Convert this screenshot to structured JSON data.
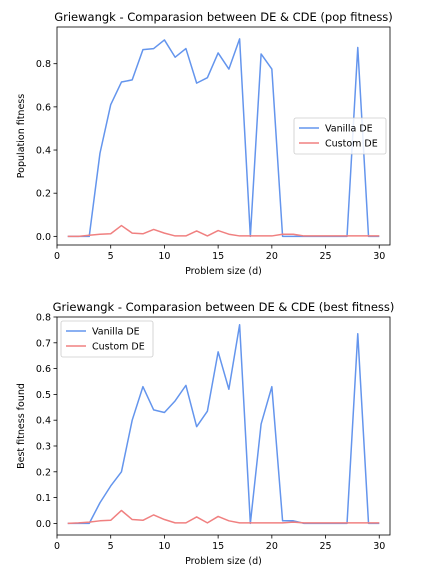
{
  "chart_data": [
    {
      "type": "line",
      "title": "Griewangk - Comparasion between DE & CDE (pop fitness)",
      "xlabel": "Problem size (d)",
      "ylabel": "Population fitness",
      "xlim": [
        0,
        31
      ],
      "ylim": [
        -0.04,
        0.97
      ],
      "xticks": [
        "0",
        "5",
        "10",
        "15",
        "20",
        "25",
        "30"
      ],
      "yticks": [
        "0.0",
        "0.2",
        "0.4",
        "0.6",
        "0.8"
      ],
      "legend_position": "center-right",
      "grid": false,
      "x": [
        1,
        2,
        3,
        4,
        5,
        6,
        7,
        8,
        9,
        10,
        11,
        12,
        13,
        14,
        15,
        16,
        17,
        18,
        19,
        20,
        21,
        22,
        23,
        24,
        25,
        26,
        27,
        28,
        29,
        30
      ],
      "series": [
        {
          "name": "Vanilla DE",
          "color": "#6495ed",
          "values": [
            0.0,
            0.0,
            0.0,
            0.385,
            0.61,
            0.715,
            0.725,
            0.865,
            0.87,
            0.91,
            0.83,
            0.87,
            0.71,
            0.735,
            0.85,
            0.775,
            0.915,
            0.0,
            0.845,
            0.775,
            0.0,
            0.0,
            0.0,
            0.0,
            0.0,
            0.0,
            0.0,
            0.875,
            0.0,
            0.0
          ]
        },
        {
          "name": "Custom DE",
          "color": "#f08080",
          "values": [
            0.0,
            0.0,
            0.005,
            0.01,
            0.012,
            0.05,
            0.015,
            0.012,
            0.032,
            0.015,
            0.002,
            0.002,
            0.025,
            0.002,
            0.027,
            0.01,
            0.002,
            0.002,
            0.002,
            0.002,
            0.01,
            0.01,
            0.002,
            0.002,
            0.002,
            0.002,
            0.002,
            0.002,
            0.002,
            0.002
          ]
        }
      ]
    },
    {
      "type": "line",
      "title": "Griewangk - Comparasion between DE & CDE (best fitness)",
      "xlabel": "Problem size (d)",
      "ylabel": "Best fitness found",
      "xlim": [
        0,
        31
      ],
      "ylim": [
        -0.045,
        0.8
      ],
      "xticks": [
        "0",
        "5",
        "10",
        "15",
        "20",
        "25",
        "30"
      ],
      "yticks": [
        "0.0",
        "0.1",
        "0.2",
        "0.3",
        "0.4",
        "0.5",
        "0.6",
        "0.7",
        "0.8"
      ],
      "legend_position": "upper-left",
      "grid": false,
      "x": [
        1,
        2,
        3,
        4,
        5,
        6,
        7,
        8,
        9,
        10,
        11,
        12,
        13,
        14,
        15,
        16,
        17,
        18,
        19,
        20,
        21,
        22,
        23,
        24,
        25,
        26,
        27,
        28,
        29,
        30
      ],
      "series": [
        {
          "name": "Vanilla DE",
          "color": "#6495ed",
          "values": [
            0.0,
            0.0,
            0.0,
            0.08,
            0.145,
            0.2,
            0.4,
            0.53,
            0.44,
            0.43,
            0.475,
            0.535,
            0.375,
            0.435,
            0.665,
            0.52,
            0.77,
            0.0,
            0.385,
            0.53,
            0.01,
            0.01,
            0.0,
            0.0,
            0.0,
            0.0,
            0.0,
            0.735,
            0.0,
            0.0
          ]
        },
        {
          "name": "Custom DE",
          "color": "#f08080",
          "values": [
            0.0,
            0.002,
            0.005,
            0.01,
            0.012,
            0.05,
            0.015,
            0.012,
            0.033,
            0.015,
            0.002,
            0.002,
            0.025,
            0.002,
            0.027,
            0.01,
            0.002,
            0.002,
            0.002,
            0.002,
            0.002,
            0.005,
            0.002,
            0.002,
            0.002,
            0.002,
            0.002,
            0.002,
            0.002,
            0.002
          ]
        }
      ]
    }
  ]
}
